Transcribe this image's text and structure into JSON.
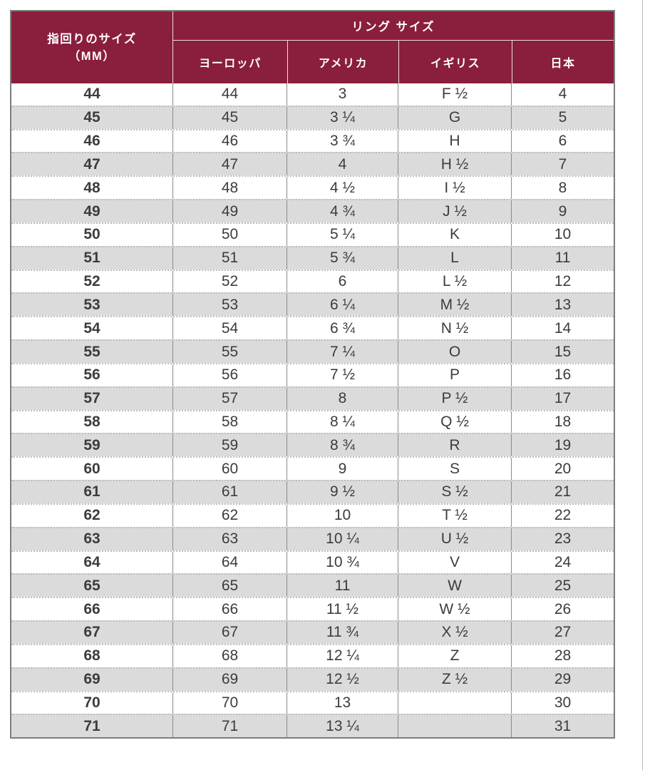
{
  "chart_data": {
    "type": "table",
    "header": {
      "finger_size_line1": "指回りのサイズ",
      "finger_size_line2": "（MM）",
      "ring_size_label": "リング サイズ",
      "sub_columns": [
        "ヨーロッパ",
        "アメリカ",
        "イギリス",
        "日本"
      ]
    },
    "columns": [
      "指回りのサイズ（MM）",
      "ヨーロッパ",
      "アメリカ",
      "イギリス",
      "日本"
    ],
    "rows": [
      [
        "44",
        "44",
        "3",
        "F ½",
        "4"
      ],
      [
        "45",
        "45",
        "3 ¼",
        "G",
        "5"
      ],
      [
        "46",
        "46",
        "3 ¾",
        "H",
        "6"
      ],
      [
        "47",
        "47",
        "4",
        "H ½",
        "7"
      ],
      [
        "48",
        "48",
        "4 ½",
        "I ½",
        "8"
      ],
      [
        "49",
        "49",
        "4 ¾",
        "J ½",
        "9"
      ],
      [
        "50",
        "50",
        "5 ¼",
        "K",
        "10"
      ],
      [
        "51",
        "51",
        "5 ¾",
        "L",
        "11"
      ],
      [
        "52",
        "52",
        "6",
        "L ½",
        "12"
      ],
      [
        "53",
        "53",
        "6 ¼",
        "M ½",
        "13"
      ],
      [
        "54",
        "54",
        "6 ¾",
        "N ½",
        "14"
      ],
      [
        "55",
        "55",
        "7 ¼",
        "O",
        "15"
      ],
      [
        "56",
        "56",
        "7 ½",
        "P",
        "16"
      ],
      [
        "57",
        "57",
        "8",
        "P ½",
        "17"
      ],
      [
        "58",
        "58",
        "8 ¼",
        "Q ½",
        "18"
      ],
      [
        "59",
        "59",
        "8 ¾",
        "R",
        "19"
      ],
      [
        "60",
        "60",
        "9",
        "S",
        "20"
      ],
      [
        "61",
        "61",
        "9 ½",
        "S ½",
        "21"
      ],
      [
        "62",
        "62",
        "10",
        "T ½",
        "22"
      ],
      [
        "63",
        "63",
        "10 ¼",
        "U ½",
        "23"
      ],
      [
        "64",
        "64",
        "10 ¾",
        "V",
        "24"
      ],
      [
        "65",
        "65",
        "11",
        "W",
        "25"
      ],
      [
        "66",
        "66",
        "11 ½",
        "W ½",
        "26"
      ],
      [
        "67",
        "67",
        "11 ¾",
        "X ½",
        "27"
      ],
      [
        "68",
        "68",
        "12 ¼",
        "Z",
        "28"
      ],
      [
        "69",
        "69",
        "12 ½",
        "Z ½",
        "29"
      ],
      [
        "70",
        "70",
        "13",
        "",
        "30"
      ],
      [
        "71",
        "71",
        "13 ¼",
        "",
        "31"
      ]
    ]
  },
  "colors": {
    "header_bg": "#8A1E3D",
    "header_text": "#FFFFFF",
    "row_bg": "#FFFFFF",
    "row_alt_bg": "#DBDBDB",
    "body_text": "#3C3C3C"
  }
}
